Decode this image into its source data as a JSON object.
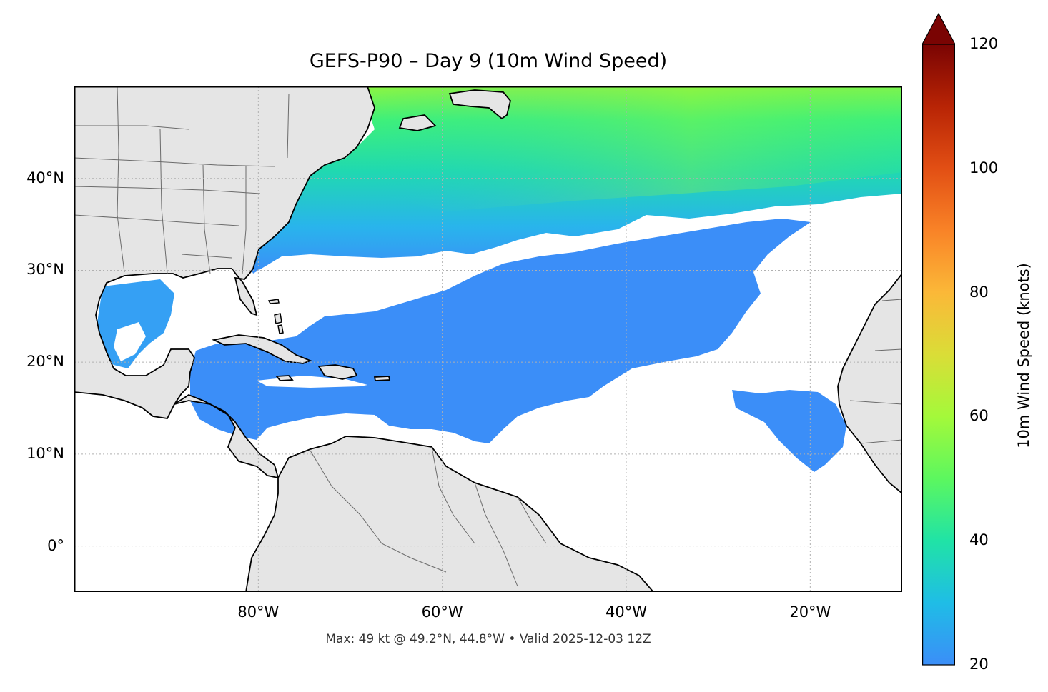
{
  "title": "GEFS-P90 – Day 9 (10m Wind Speed)",
  "footer": "Max: 49 kt @ 49.2°N, 44.8°W • Valid 2025-12-03 12Z",
  "map": {
    "projection": "PlateCarree",
    "lon_range": [
      -100,
      -10
    ],
    "lat_range": [
      -5,
      50
    ],
    "land_color": "#e5e5e5",
    "ocean_color": "#ffffff",
    "gridlines": "dotted",
    "lat_ticks": [
      {
        "value": 40,
        "label": "40°N"
      },
      {
        "value": 30,
        "label": "30°N"
      },
      {
        "value": 20,
        "label": "20°N"
      },
      {
        "value": 10,
        "label": "10°N"
      },
      {
        "value": 0,
        "label": "0°"
      }
    ],
    "lon_ticks": [
      {
        "value": -80,
        "label": "80°W"
      },
      {
        "value": -60,
        "label": "60°W"
      },
      {
        "value": -40,
        "label": "40°W"
      },
      {
        "value": -20,
        "label": "20°W"
      }
    ]
  },
  "colorbar": {
    "label": "10m Wind Speed (knots)",
    "min": 20,
    "max": 120,
    "extend": "max",
    "colormap": "turbo",
    "ticks": [
      {
        "value": 120,
        "label": "120"
      },
      {
        "value": 100,
        "label": "100"
      },
      {
        "value": 80,
        "label": "80"
      },
      {
        "value": 60,
        "label": "60"
      },
      {
        "value": 40,
        "label": "40"
      },
      {
        "value": 20,
        "label": "20"
      }
    ],
    "extend_color": "#7a0403"
  },
  "wind_field": {
    "description_colors": {
      "low": "#3b8ef8",
      "mid": "#1ed8b5",
      "high": "#8cf542"
    },
    "max_kt": 49,
    "max_lat": 49.2,
    "max_lon": -44.8
  }
}
